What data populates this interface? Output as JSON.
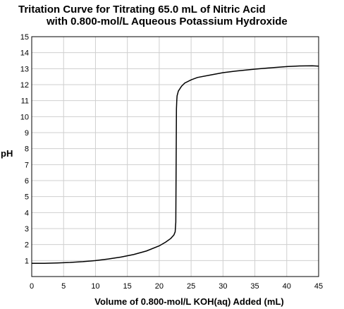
{
  "chart_data": {
    "type": "line",
    "title_line1": "Tritation Curve for Titrating 65.0 mL of Nitric Acid",
    "title_line2": "with 0.800-mol/L Aqueous Potassium Hydroxide",
    "xlabel": "Volume of 0.800-mol/L KOH(aq) Added (mL)",
    "ylabel": "pH",
    "xlim": [
      0,
      45
    ],
    "ylim": [
      0,
      15
    ],
    "xticks": [
      "0",
      "5",
      "10",
      "15",
      "20",
      "25",
      "30",
      "35",
      "40",
      "45"
    ],
    "yticks": [
      "1",
      "2",
      "3",
      "4",
      "5",
      "6",
      "7",
      "8",
      "9",
      "10",
      "11",
      "12",
      "13",
      "14",
      "15"
    ],
    "grid": true,
    "series": [
      {
        "x": [
          0,
          2,
          4,
          6,
          8,
          10,
          12,
          14,
          16,
          18,
          20,
          21,
          21.8,
          22.3,
          22.5,
          22.6,
          22.65,
          22.7,
          22.75,
          22.8,
          23.0,
          23.5,
          24,
          25,
          26,
          28,
          30,
          32,
          35,
          38,
          40,
          42,
          44,
          45
        ],
        "y": [
          0.83,
          0.83,
          0.85,
          0.88,
          0.93,
          1.0,
          1.1,
          1.22,
          1.38,
          1.6,
          1.92,
          2.15,
          2.38,
          2.6,
          2.8,
          3.4,
          7.0,
          10.5,
          11.0,
          11.3,
          11.6,
          11.9,
          12.1,
          12.3,
          12.45,
          12.6,
          12.75,
          12.85,
          12.97,
          13.07,
          13.13,
          13.17,
          13.18,
          13.16
        ],
        "color": "#000000"
      }
    ]
  }
}
